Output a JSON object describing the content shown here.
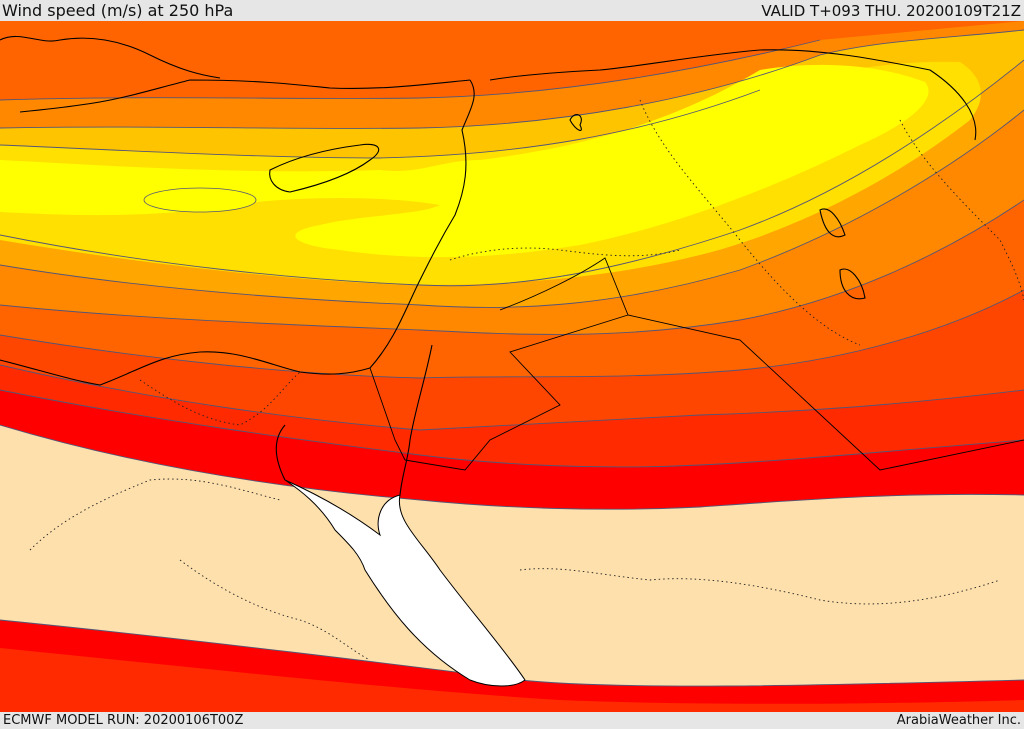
{
  "header": {
    "title": "Wind speed (m/s) at 250 hPa",
    "valid": "VALID T+093 THU. 20200109T21Z"
  },
  "footer": {
    "model_run": "ECMWF MODEL RUN: 20200106T00Z",
    "credit": "ArabiaWeather Inc."
  },
  "map": {
    "field": "wind speed",
    "units": "m/s",
    "level_hpa": 250,
    "colors": {
      "calm": "#fde0ac",
      "band_red": "#ff0000",
      "band_red_orange": "#ff2a00",
      "band_orange_red": "#ff4600",
      "band_dark_orange": "#ff6400",
      "band_orange": "#ff8800",
      "band_light_orange": "#ffa600",
      "band_amber": "#ffc400",
      "band_yellow_orange": "#ffe000",
      "band_yellow": "#ffff00",
      "sea_no_data": "#ffffff",
      "contour": "#555577",
      "coastline": "#000000"
    }
  }
}
